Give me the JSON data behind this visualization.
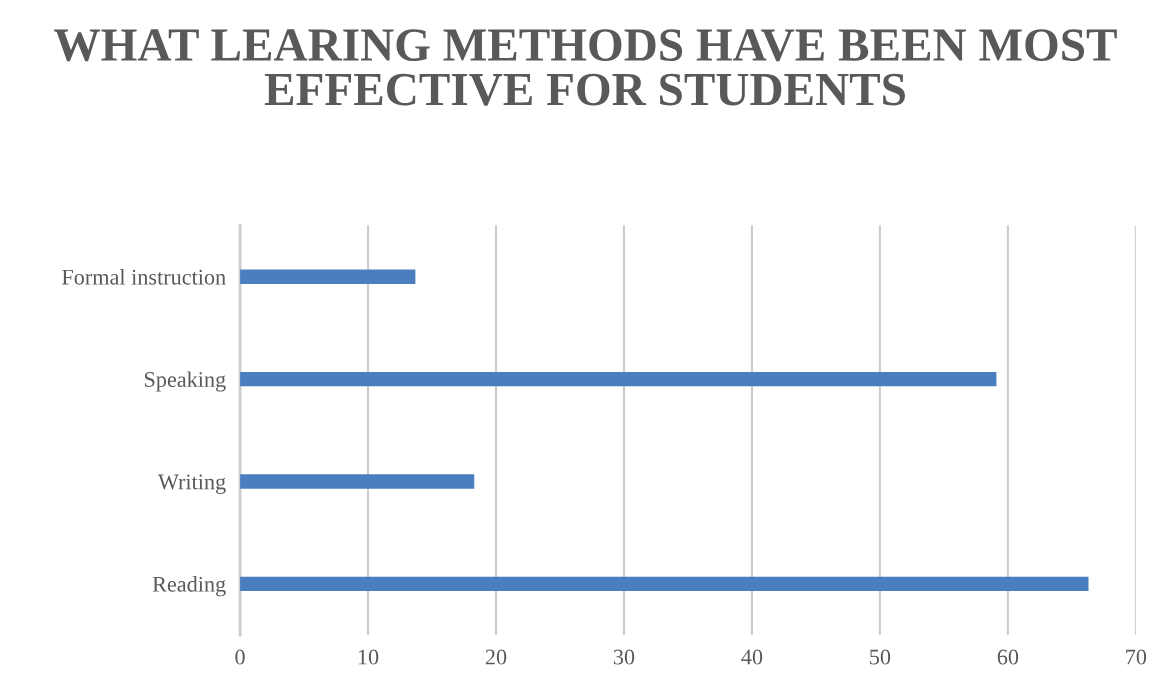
{
  "chart_data": {
    "type": "bar",
    "orientation": "horizontal",
    "title": "WHAT LEARING METHODS HAVE BEEN MOST EFFECTIVE FOR STUDENTS",
    "categories": [
      "Formal instruction",
      "Speaking",
      "Writing",
      "Reading"
    ],
    "values": [
      13.7,
      59.1,
      18.3,
      66.3
    ],
    "color": "#4a7ebf",
    "xlim": [
      0,
      70
    ],
    "xticks": [
      0,
      10,
      20,
      30,
      40,
      50,
      60,
      70
    ],
    "grid": "x"
  }
}
